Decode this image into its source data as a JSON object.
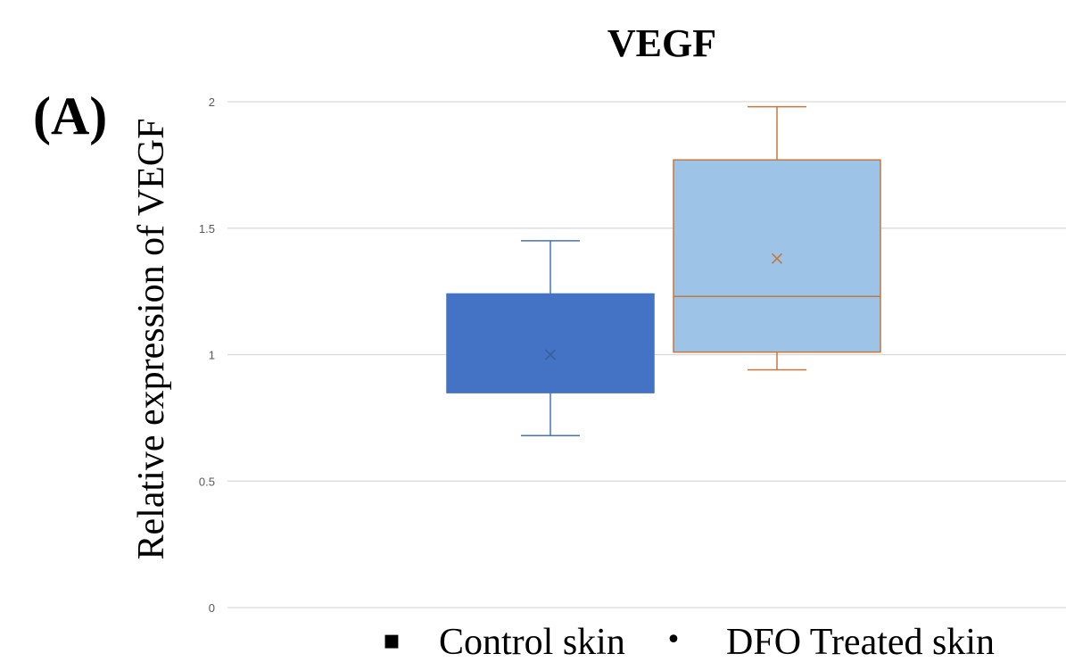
{
  "panel_label": "(A)",
  "chart_data": {
    "type": "box",
    "title": "VEGF",
    "xlabel": "",
    "ylabel": "Relative expression of VEGF",
    "ylim": [
      0,
      2
    ],
    "yticks": [
      "0",
      "0.5",
      "1",
      "1.5",
      "2"
    ],
    "grid": true,
    "legend_position": "bottom",
    "series": [
      {
        "name": "Control skin",
        "legend_marker": "▪",
        "fill": "#4472c4",
        "stroke": "#4472c4",
        "whisker_low": 0.68,
        "q1": 0.85,
        "median": 0.85,
        "q3": 1.24,
        "whisker_high": 1.45,
        "mean": 1.0
      },
      {
        "name": "DFO Treated skin",
        "legend_marker": "•",
        "fill": "#9dc3e6",
        "stroke": "#c5783d",
        "whisker_low": 0.94,
        "q1": 1.01,
        "median": 1.23,
        "q3": 1.77,
        "whisker_high": 1.98,
        "mean": 1.38
      }
    ]
  }
}
